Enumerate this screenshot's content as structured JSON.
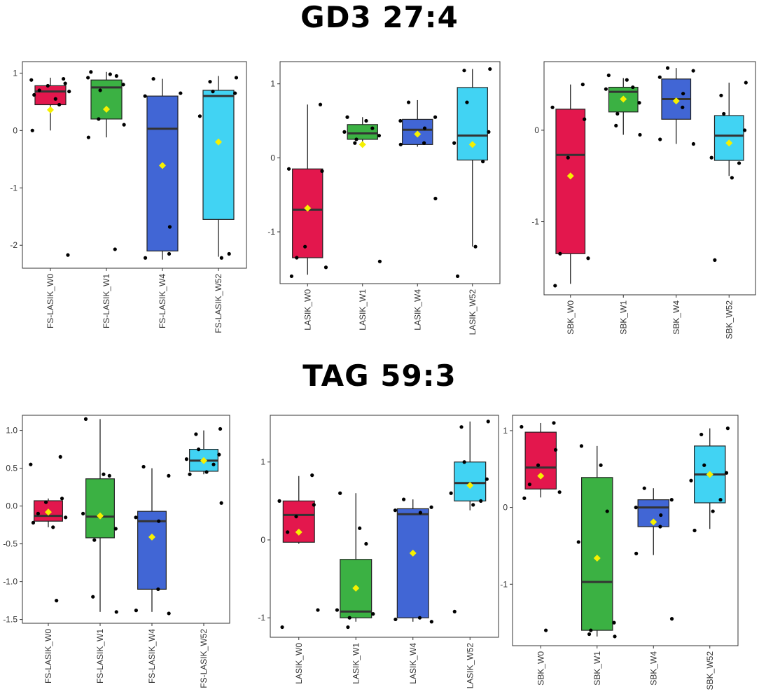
{
  "colors": {
    "W0": "#e3174d",
    "W1": "#3bb143",
    "W4": "#4166d5",
    "W52": "#41d3f3",
    "mean": "#f5f000",
    "point": "#000000",
    "median": "#333333"
  },
  "sections": [
    {
      "title": "GD3 27:4"
    },
    {
      "title": "TAG 59:3"
    }
  ],
  "chart_data": [
    {
      "type": "boxplot",
      "section": "GD3 27:4",
      "categories": [
        "FS-LASIK_W0",
        "FS-LASIK_W1",
        "FS-LASIK_W4",
        "FS-LASIK_W52"
      ],
      "ylim": [
        -2.4,
        1.2
      ],
      "yticks": [
        1,
        0,
        -1,
        -2
      ],
      "ytick_labels": [
        "1",
        "0",
        "-1",
        "-2"
      ],
      "boxes": [
        {
          "q1": 0.45,
          "median": 0.68,
          "q3": 0.78,
          "wlo": 0.0,
          "whi": 0.92,
          "mean": 0.36,
          "points": [
            0.9,
            0.88,
            0.82,
            0.78,
            0.7,
            0.68,
            0.62,
            0.55,
            0.45,
            0.0,
            -2.17
          ]
        },
        {
          "q1": 0.2,
          "median": 0.75,
          "q3": 0.88,
          "wlo": -0.12,
          "whi": 1.02,
          "mean": 0.37,
          "points": [
            1.02,
            0.98,
            0.95,
            0.92,
            0.8,
            0.7,
            0.2,
            0.1,
            -0.12,
            -2.07
          ]
        },
        {
          "q1": -2.1,
          "median": 0.03,
          "q3": 0.6,
          "wlo": -2.25,
          "whi": 0.9,
          "mean": -0.61,
          "points": [
            0.9,
            0.65,
            0.6,
            -1.68,
            -2.15,
            -2.22
          ]
        },
        {
          "q1": -1.55,
          "median": 0.6,
          "q3": 0.7,
          "wlo": -2.2,
          "whi": 0.95,
          "mean": -0.2,
          "points": [
            0.92,
            0.85,
            0.68,
            0.65,
            0.25,
            -2.15,
            -2.22
          ]
        }
      ]
    },
    {
      "type": "boxplot",
      "section": "GD3 27:4",
      "categories": [
        "LASIK_W0",
        "LASIK_W1",
        "LASIK_W4",
        "LASIK_W52"
      ],
      "ylim": [
        -1.7,
        1.3
      ],
      "yticks": [
        1,
        0,
        -1
      ],
      "ytick_labels": [
        "1",
        "0",
        "-1"
      ],
      "boxes": [
        {
          "q1": -1.35,
          "median": -0.7,
          "q3": -0.15,
          "wlo": -1.58,
          "whi": 0.72,
          "mean": -0.68,
          "points": [
            0.72,
            -0.15,
            -0.18,
            -1.2,
            -1.35,
            -1.48,
            -1.6
          ]
        },
        {
          "q1": 0.25,
          "median": 0.33,
          "q3": 0.45,
          "wlo": 0.18,
          "whi": 0.55,
          "mean": 0.18,
          "points": [
            0.55,
            0.5,
            0.4,
            0.35,
            0.3,
            0.25,
            0.2,
            -1.4
          ]
        },
        {
          "q1": 0.18,
          "median": 0.38,
          "q3": 0.52,
          "wlo": 0.15,
          "whi": 0.78,
          "mean": 0.32,
          "points": [
            0.75,
            0.55,
            0.5,
            0.4,
            0.2,
            0.18,
            -0.55
          ]
        },
        {
          "q1": -0.03,
          "median": 0.3,
          "q3": 0.95,
          "wlo": -1.2,
          "whi": 1.2,
          "mean": 0.18,
          "points": [
            1.2,
            1.18,
            0.75,
            0.35,
            0.2,
            -0.05,
            -1.2,
            -1.6
          ]
        }
      ]
    },
    {
      "type": "boxplot",
      "section": "GD3 27:4",
      "categories": [
        "SBK_W0",
        "SBK_W1",
        "SBK_W4",
        "SBK_W52"
      ],
      "ylim": [
        -1.8,
        0.75
      ],
      "yticks": [
        0,
        -1
      ],
      "ytick_labels": [
        "0",
        "-1"
      ],
      "boxes": [
        {
          "q1": -1.35,
          "median": -0.27,
          "q3": 0.23,
          "wlo": -1.68,
          "whi": 0.5,
          "mean": -0.5,
          "points": [
            0.5,
            0.25,
            0.12,
            -0.3,
            -1.35,
            -1.4,
            -1.7
          ]
        },
        {
          "q1": 0.2,
          "median": 0.42,
          "q3": 0.47,
          "wlo": -0.05,
          "whi": 0.57,
          "mean": 0.34,
          "points": [
            0.6,
            0.55,
            0.47,
            0.45,
            0.3,
            0.18,
            0.05,
            -0.05
          ]
        },
        {
          "q1": 0.12,
          "median": 0.34,
          "q3": 0.56,
          "wlo": -0.15,
          "whi": 0.68,
          "mean": 0.32,
          "points": [
            0.68,
            0.65,
            0.58,
            0.4,
            0.25,
            -0.1,
            -0.15
          ]
        },
        {
          "q1": -0.33,
          "median": -0.06,
          "q3": 0.16,
          "wlo": -0.5,
          "whi": 0.52,
          "mean": -0.14,
          "points": [
            0.52,
            0.38,
            0.18,
            0.0,
            -0.3,
            -0.36,
            -0.52,
            -1.42
          ]
        }
      ]
    },
    {
      "type": "boxplot",
      "section": "TAG 59:3",
      "categories": [
        "FS-LASIK_W0",
        "FS-LASIK_W1",
        "FS-LASIK_W4",
        "FS-LASIK_W52"
      ],
      "ylim": [
        -1.55,
        1.2
      ],
      "yticks": [
        1.0,
        0.5,
        0.0,
        -0.5,
        -1.0,
        -1.5
      ],
      "ytick_labels": [
        "1.0",
        "0.5",
        "0.0",
        "-0.5",
        "-1.0",
        "-1.5"
      ],
      "boxes": [
        {
          "q1": -0.2,
          "median": -0.13,
          "q3": 0.07,
          "wlo": -0.28,
          "whi": 0.1,
          "mean": -0.08,
          "points": [
            0.65,
            0.55,
            0.1,
            0.05,
            -0.1,
            -0.15,
            -0.22,
            -0.28,
            -1.25
          ]
        },
        {
          "q1": -0.42,
          "median": -0.14,
          "q3": 0.36,
          "wlo": -1.4,
          "whi": 1.15,
          "mean": -0.13,
          "points": [
            1.15,
            0.42,
            0.4,
            -0.1,
            -0.3,
            -0.45,
            -1.2,
            -1.4
          ]
        },
        {
          "q1": -1.1,
          "median": -0.2,
          "q3": -0.07,
          "wlo": -1.4,
          "whi": 0.5,
          "mean": -0.41,
          "points": [
            0.52,
            0.4,
            -0.15,
            -0.2,
            -1.1,
            -1.38,
            -1.42
          ]
        },
        {
          "q1": 0.46,
          "median": 0.6,
          "q3": 0.75,
          "wlo": 0.42,
          "whi": 1.0,
          "mean": 0.6,
          "points": [
            1.02,
            0.95,
            0.75,
            0.68,
            0.62,
            0.55,
            0.45,
            0.42,
            0.04
          ]
        }
      ]
    },
    {
      "type": "boxplot",
      "section": "TAG 59:3",
      "categories": [
        "LASIK_W0",
        "LASIK_W1",
        "LASIK_W4",
        "LASIK_W52"
      ],
      "ylim": [
        -1.25,
        1.6
      ],
      "yticks": [
        1,
        0,
        -1
      ],
      "ytick_labels": [
        "1",
        "0",
        "-1"
      ],
      "boxes": [
        {
          "q1": -0.03,
          "median": 0.32,
          "q3": 0.5,
          "wlo": -0.05,
          "whi": 0.82,
          "mean": 0.1,
          "points": [
            0.83,
            0.5,
            0.45,
            0.3,
            0.1,
            -0.9,
            -1.12
          ]
        },
        {
          "q1": -1.0,
          "median": -0.92,
          "q3": -0.25,
          "wlo": -1.05,
          "whi": 0.6,
          "mean": -0.62,
          "points": [
            0.6,
            0.15,
            -0.05,
            -0.9,
            -0.95,
            -1.0,
            -1.12
          ]
        },
        {
          "q1": -1.0,
          "median": 0.33,
          "q3": 0.4,
          "wlo": -1.05,
          "whi": 0.52,
          "mean": -0.17,
          "points": [
            0.52,
            0.42,
            0.38,
            0.35,
            -1.0,
            -1.02,
            -1.05
          ]
        },
        {
          "q1": 0.5,
          "median": 0.73,
          "q3": 1.0,
          "wlo": 0.38,
          "whi": 1.52,
          "mean": 0.7,
          "points": [
            1.52,
            1.45,
            1.0,
            0.78,
            0.6,
            0.5,
            0.45,
            -0.92
          ]
        }
      ]
    },
    {
      "type": "boxplot",
      "section": "TAG 59:3",
      "categories": [
        "SBK_W0",
        "SBK_W1",
        "SBK_W4",
        "SBK_W52"
      ],
      "ylim": [
        -1.8,
        1.2
      ],
      "yticks": [
        1,
        0,
        -1
      ],
      "ytick_labels": [
        "1",
        "0",
        "-1"
      ],
      "boxes": [
        {
          "q1": 0.24,
          "median": 0.52,
          "q3": 0.98,
          "wlo": 0.13,
          "whi": 1.1,
          "mean": 0.41,
          "points": [
            1.1,
            1.05,
            0.75,
            0.55,
            0.3,
            0.2,
            0.12,
            -1.6
          ]
        },
        {
          "q1": -1.6,
          "median": -0.97,
          "q3": 0.39,
          "wlo": -1.68,
          "whi": 0.8,
          "mean": -0.66,
          "points": [
            0.8,
            0.55,
            -0.05,
            -0.45,
            -1.5,
            -1.6,
            -1.65,
            -1.68
          ]
        },
        {
          "q1": -0.25,
          "median": 0.0,
          "q3": 0.1,
          "wlo": -0.62,
          "whi": 0.25,
          "mean": -0.19,
          "points": [
            0.25,
            0.1,
            0.0,
            -0.1,
            -0.25,
            -0.6,
            -1.45
          ]
        },
        {
          "q1": 0.06,
          "median": 0.43,
          "q3": 0.8,
          "wlo": -0.28,
          "whi": 1.03,
          "mean": 0.43,
          "points": [
            1.03,
            0.95,
            0.55,
            0.45,
            0.35,
            0.1,
            -0.05,
            -0.3
          ]
        }
      ]
    }
  ]
}
